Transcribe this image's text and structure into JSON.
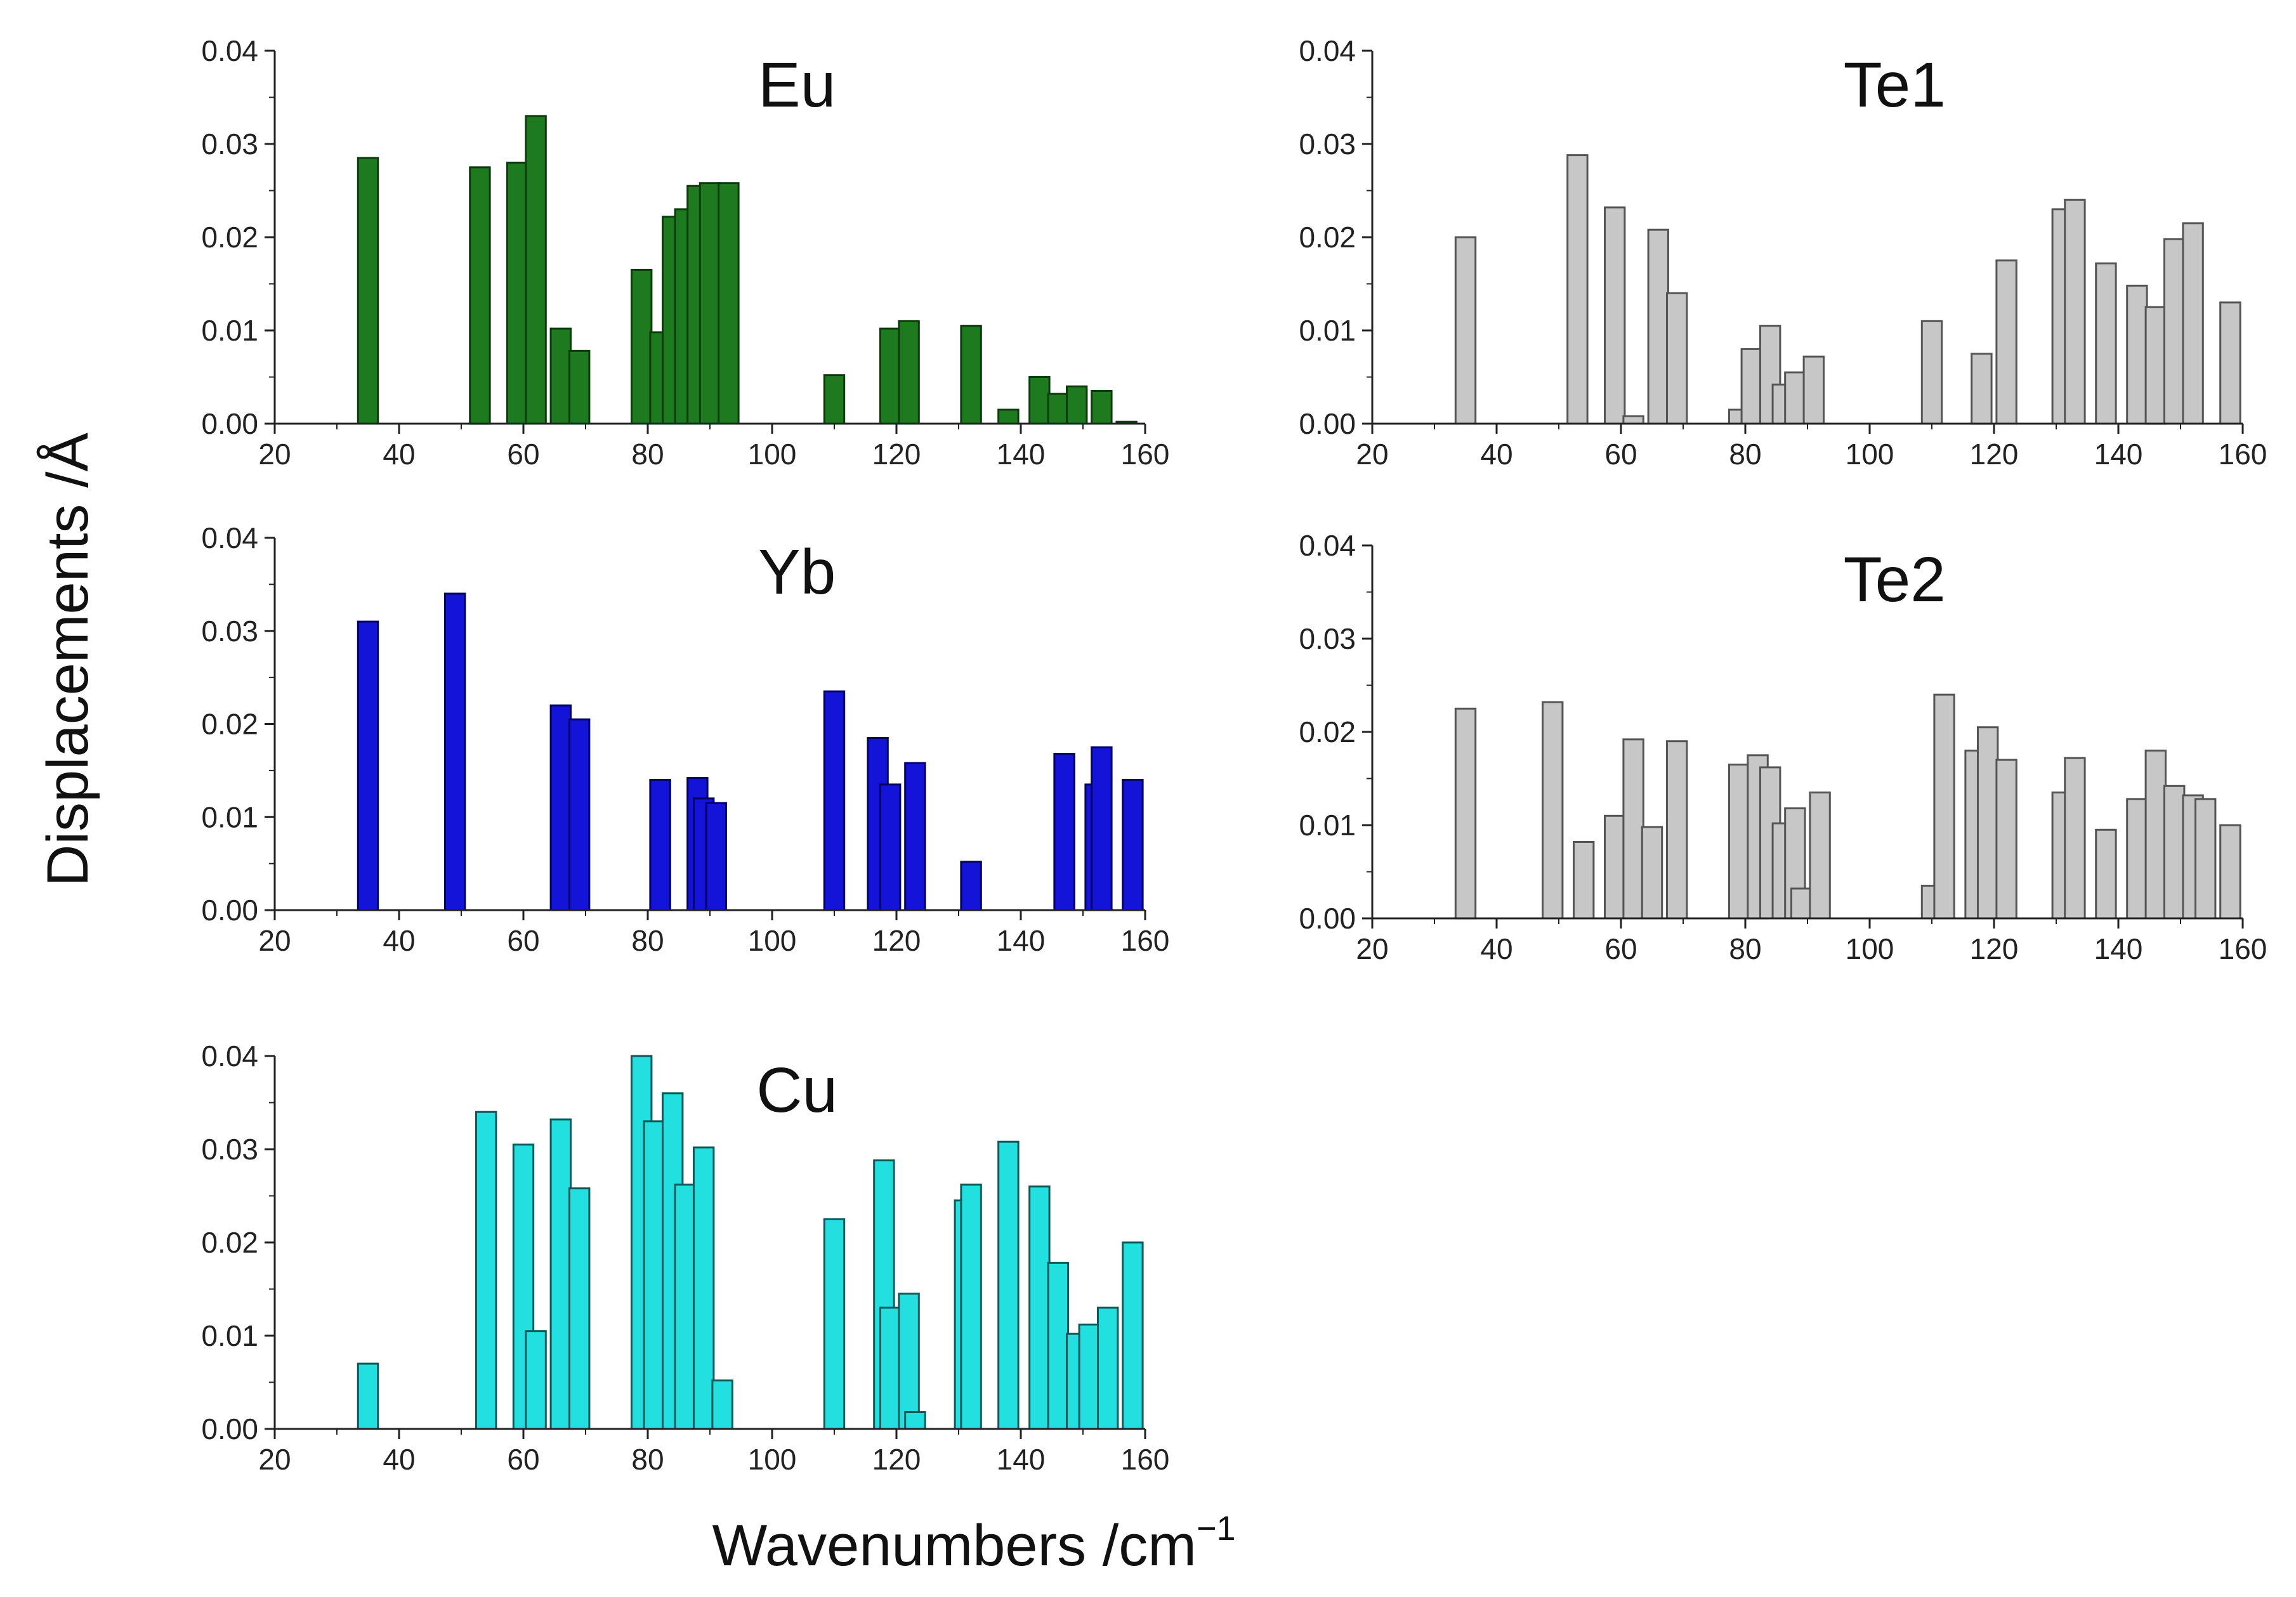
{
  "figure": {
    "ylabel": "Displacements /Å",
    "xlabel_main": "Wavenumbers /cm",
    "xlabel_sup": "−1"
  },
  "chart_data": [
    {
      "type": "bar",
      "title": "Eu",
      "color": "#1e7a1e",
      "stroke": "#0b3d0b",
      "xlim": [
        20,
        160
      ],
      "ylim": [
        0,
        0.04
      ],
      "xticks": [
        "20",
        "40",
        "60",
        "80",
        "100",
        "120",
        "140",
        "160"
      ],
      "yticks": [
        "0.00",
        "0.01",
        "0.02",
        "0.03",
        "0.04"
      ],
      "x": [
        35,
        53,
        59,
        62,
        66,
        69,
        79,
        82,
        84,
        86,
        88,
        90,
        93,
        110,
        119,
        122,
        132,
        138,
        143,
        146,
        149,
        153,
        157
      ],
      "values": [
        0.0285,
        0.0275,
        0.028,
        0.033,
        0.0102,
        0.0078,
        0.0165,
        0.0098,
        0.0222,
        0.023,
        0.0255,
        0.0258,
        0.0258,
        0.0052,
        0.0102,
        0.011,
        0.0105,
        0.0015,
        0.005,
        0.0032,
        0.004,
        0.0035,
        0.0002
      ]
    },
    {
      "type": "bar",
      "title": "Te1",
      "color": "#c7c7c7",
      "stroke": "#555555",
      "xlim": [
        20,
        160
      ],
      "ylim": [
        0,
        0.04
      ],
      "xticks": [
        "20",
        "40",
        "60",
        "80",
        "100",
        "120",
        "140",
        "160"
      ],
      "yticks": [
        "0.00",
        "0.01",
        "0.02",
        "0.03",
        "0.04"
      ],
      "x": [
        35,
        53,
        59,
        62,
        66,
        69,
        79,
        81,
        84,
        86,
        88,
        91,
        110,
        118,
        122,
        131,
        133,
        138,
        143,
        146,
        149,
        152,
        158
      ],
      "values": [
        0.02,
        0.0288,
        0.0232,
        0.0008,
        0.0208,
        0.014,
        0.0015,
        0.008,
        0.0105,
        0.0042,
        0.0055,
        0.0072,
        0.011,
        0.0075,
        0.0175,
        0.023,
        0.024,
        0.0172,
        0.0148,
        0.0125,
        0.0198,
        0.0215,
        0.013
      ]
    },
    {
      "type": "bar",
      "title": "Yb",
      "color": "#1414d8",
      "stroke": "#000066",
      "xlim": [
        20,
        160
      ],
      "ylim": [
        0,
        0.04
      ],
      "xticks": [
        "20",
        "40",
        "60",
        "80",
        "100",
        "120",
        "140",
        "160"
      ],
      "yticks": [
        "0.00",
        "0.01",
        "0.02",
        "0.03",
        "0.04"
      ],
      "x": [
        35,
        49,
        66,
        69,
        82,
        88,
        89,
        91,
        110,
        117,
        119,
        123,
        132,
        147,
        152,
        153,
        158
      ],
      "values": [
        0.031,
        0.034,
        0.022,
        0.0205,
        0.014,
        0.0142,
        0.012,
        0.0115,
        0.0235,
        0.0185,
        0.0135,
        0.0158,
        0.0052,
        0.0168,
        0.0135,
        0.0175,
        0.014
      ]
    },
    {
      "type": "bar",
      "title": "Te2",
      "color": "#c7c7c7",
      "stroke": "#555555",
      "xlim": [
        20,
        160
      ],
      "ylim": [
        0,
        0.04
      ],
      "xticks": [
        "20",
        "40",
        "60",
        "80",
        "100",
        "120",
        "140",
        "160"
      ],
      "yticks": [
        "0.00",
        "0.01",
        "0.02",
        "0.03",
        "0.04"
      ],
      "x": [
        35,
        49,
        54,
        59,
        62,
        65,
        69,
        79,
        82,
        84,
        86,
        88,
        89,
        92,
        110,
        112,
        117,
        119,
        122,
        131,
        133,
        138,
        143,
        146,
        149,
        152,
        154,
        158
      ],
      "values": [
        0.0225,
        0.0232,
        0.0082,
        0.011,
        0.0192,
        0.0098,
        0.019,
        0.0165,
        0.0175,
        0.0162,
        0.0102,
        0.0118,
        0.0032,
        0.0135,
        0.0035,
        0.024,
        0.018,
        0.0205,
        0.017,
        0.0135,
        0.0172,
        0.0095,
        0.0128,
        0.018,
        0.0142,
        0.0132,
        0.0128,
        0.01
      ]
    },
    {
      "type": "bar",
      "title": "Cu",
      "color": "#22e0e0",
      "stroke": "#0b5a5a",
      "xlim": [
        20,
        160
      ],
      "ylim": [
        0,
        0.04
      ],
      "xticks": [
        "20",
        "40",
        "60",
        "80",
        "100",
        "120",
        "140",
        "160"
      ],
      "yticks": [
        "0.00",
        "0.01",
        "0.02",
        "0.03",
        "0.04"
      ],
      "x": [
        35,
        54,
        60,
        62,
        66,
        69,
        79,
        81,
        84,
        86,
        89,
        92,
        110,
        118,
        119,
        122,
        123,
        131,
        132,
        138,
        143,
        146,
        149,
        151,
        154,
        158
      ],
      "values": [
        0.007,
        0.034,
        0.0305,
        0.0105,
        0.0332,
        0.0258,
        0.04,
        0.033,
        0.036,
        0.0262,
        0.0302,
        0.0052,
        0.0225,
        0.0288,
        0.013,
        0.0145,
        0.0018,
        0.0245,
        0.0262,
        0.0308,
        0.026,
        0.0178,
        0.0102,
        0.0112,
        0.013,
        0.02
      ]
    }
  ]
}
